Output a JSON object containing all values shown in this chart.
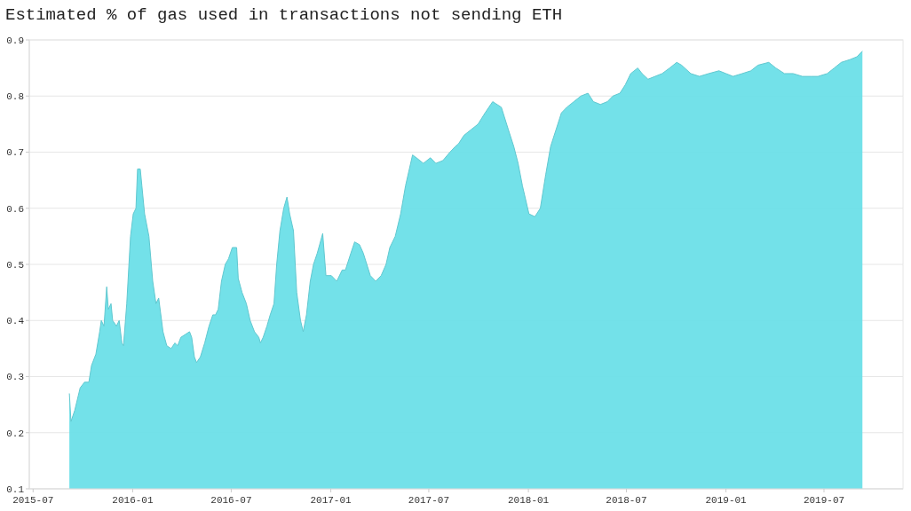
{
  "chart_data": {
    "type": "area",
    "title": "Estimated % of gas used in transactions not sending ETH",
    "x": [
      "2015-09-06",
      "2015-09-09",
      "2015-09-16",
      "2015-09-26",
      "2015-10-04",
      "2015-10-12",
      "2015-10-17",
      "2015-10-25",
      "2015-11-01",
      "2015-11-04",
      "2015-11-09",
      "2015-11-14",
      "2015-11-17",
      "2015-11-22",
      "2015-11-25",
      "2015-12-02",
      "2015-12-07",
      "2015-12-12",
      "2015-12-15",
      "2015-12-21",
      "2015-12-28",
      "2016-01-02",
      "2016-01-07",
      "2016-01-10",
      "2016-01-15",
      "2016-01-18",
      "2016-01-23",
      "2016-01-31",
      "2016-02-07",
      "2016-02-13",
      "2016-02-18",
      "2016-02-26",
      "2016-03-04",
      "2016-03-12",
      "2016-03-19",
      "2016-03-24",
      "2016-03-30",
      "2016-04-07",
      "2016-04-15",
      "2016-04-19",
      "2016-04-24",
      "2016-04-28",
      "2016-05-05",
      "2016-05-13",
      "2016-05-21",
      "2016-05-28",
      "2016-06-02",
      "2016-06-07",
      "2016-06-13",
      "2016-06-20",
      "2016-06-26",
      "2016-07-03",
      "2016-07-11",
      "2016-07-14",
      "2016-07-21",
      "2016-07-29",
      "2016-08-05",
      "2016-08-13",
      "2016-08-21",
      "2016-08-24",
      "2016-08-29",
      "2016-09-05",
      "2016-09-11",
      "2016-09-18",
      "2016-09-23",
      "2016-09-29",
      "2016-10-06",
      "2016-10-12",
      "2016-10-17",
      "2016-10-24",
      "2016-10-30",
      "2016-11-06",
      "2016-11-11",
      "2016-11-17",
      "2016-11-24",
      "2016-11-30",
      "2016-12-07",
      "2016-12-17",
      "2016-12-23",
      "2017-01-02",
      "2017-01-12",
      "2017-01-22",
      "2017-01-28",
      "2017-02-07",
      "2017-02-14",
      "2017-02-23",
      "2017-03-02",
      "2017-03-15",
      "2017-03-25",
      "2017-04-04",
      "2017-04-13",
      "2017-04-20",
      "2017-04-30",
      "2017-05-10",
      "2017-05-19",
      "2017-06-01",
      "2017-06-08",
      "2017-06-21",
      "2017-07-04",
      "2017-07-14",
      "2017-07-27",
      "2017-08-09",
      "2017-08-19",
      "2017-08-25",
      "2017-09-04",
      "2017-09-17",
      "2017-09-30",
      "2017-10-13",
      "2017-10-27",
      "2017-11-12",
      "2017-11-25",
      "2017-12-05",
      "2017-12-13",
      "2017-12-21",
      "2018-01-02",
      "2018-01-13",
      "2018-01-23",
      "2018-02-02",
      "2018-02-11",
      "2018-02-21",
      "2018-03-03",
      "2018-03-13",
      "2018-03-26",
      "2018-04-08",
      "2018-04-21",
      "2018-05-01",
      "2018-05-14",
      "2018-05-27",
      "2018-06-06",
      "2018-06-19",
      "2018-06-29",
      "2018-07-09",
      "2018-07-22",
      "2018-07-30",
      "2018-08-10",
      "2018-08-23",
      "2018-09-05",
      "2018-09-19",
      "2018-10-02",
      "2018-10-11",
      "2018-10-28",
      "2018-11-13",
      "2018-11-30",
      "2018-12-19",
      "2019-01-01",
      "2019-01-14",
      "2019-01-31",
      "2019-02-16",
      "2019-03-01",
      "2019-03-21",
      "2019-04-03",
      "2019-04-19",
      "2019-05-05",
      "2019-05-22",
      "2019-06-07",
      "2019-06-20",
      "2019-07-07",
      "2019-07-20",
      "2019-08-02",
      "2019-08-18",
      "2019-08-31",
      "2019-09-10"
    ],
    "series": [
      {
        "color": "#6cdfe8",
        "values": [
          0.27,
          0.22,
          0.24,
          0.28,
          0.29,
          0.29,
          0.32,
          0.34,
          0.38,
          0.4,
          0.39,
          0.46,
          0.42,
          0.43,
          0.4,
          0.39,
          0.4,
          0.36,
          0.355,
          0.43,
          0.55,
          0.59,
          0.6,
          0.67,
          0.67,
          0.64,
          0.59,
          0.55,
          0.47,
          0.43,
          0.44,
          0.38,
          0.355,
          0.35,
          0.36,
          0.355,
          0.37,
          0.375,
          0.38,
          0.37,
          0.335,
          0.325,
          0.335,
          0.36,
          0.39,
          0.41,
          0.41,
          0.42,
          0.47,
          0.5,
          0.51,
          0.53,
          0.53,
          0.475,
          0.45,
          0.43,
          0.4,
          0.38,
          0.37,
          0.36,
          0.37,
          0.39,
          0.41,
          0.43,
          0.5,
          0.56,
          0.6,
          0.62,
          0.59,
          0.56,
          0.45,
          0.4,
          0.38,
          0.41,
          0.47,
          0.5,
          0.52,
          0.555,
          0.48,
          0.48,
          0.47,
          0.49,
          0.49,
          0.52,
          0.54,
          0.535,
          0.52,
          0.48,
          0.47,
          0.48,
          0.5,
          0.53,
          0.55,
          0.59,
          0.64,
          0.695,
          0.69,
          0.68,
          0.69,
          0.68,
          0.685,
          0.7,
          0.71,
          0.715,
          0.73,
          0.74,
          0.75,
          0.77,
          0.79,
          0.78,
          0.74,
          0.71,
          0.68,
          0.64,
          0.59,
          0.585,
          0.6,
          0.66,
          0.71,
          0.74,
          0.77,
          0.78,
          0.79,
          0.8,
          0.805,
          0.79,
          0.785,
          0.79,
          0.8,
          0.805,
          0.82,
          0.84,
          0.85,
          0.84,
          0.83,
          0.835,
          0.84,
          0.85,
          0.86,
          0.855,
          0.84,
          0.835,
          0.84,
          0.845,
          0.84,
          0.835,
          0.84,
          0.845,
          0.855,
          0.86,
          0.85,
          0.84,
          0.84,
          0.835,
          0.835,
          0.835,
          0.84,
          0.85,
          0.86,
          0.865,
          0.87,
          0.88
        ]
      }
    ],
    "xlim": [
      "2015-06-24",
      "2019-11-24"
    ],
    "xticks": [
      "2015-07",
      "2016-01",
      "2016-07",
      "2017-01",
      "2017-07",
      "2018-01",
      "2018-07",
      "2019-01",
      "2019-07"
    ],
    "ylim": [
      0.1,
      0.9
    ],
    "yticks": [
      0.1,
      0.2,
      0.3,
      0.4,
      0.5,
      0.6,
      0.7,
      0.8,
      0.9
    ],
    "grid": "y"
  }
}
